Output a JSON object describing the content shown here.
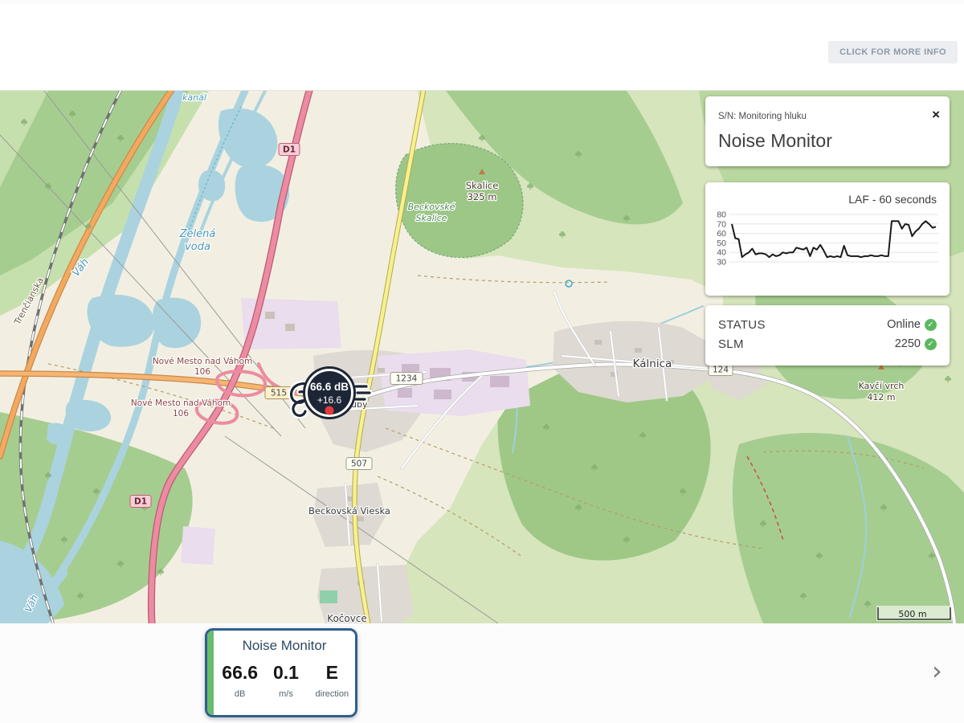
{
  "header": {
    "more_info_button": "CLICK FOR MORE INFO"
  },
  "icons": {
    "close": "×",
    "chevron": "›",
    "check": "✓"
  },
  "panel": {
    "serial": "S/N: Monitoring hluku",
    "title": "Noise Monitor",
    "status": {
      "rows": [
        {
          "label": "STATUS",
          "value": "Online"
        },
        {
          "label": "SLM",
          "value": "2250"
        }
      ]
    }
  },
  "chart_data": {
    "type": "line",
    "title": "LAF - 60 seconds",
    "xlabel": "",
    "ylabel": "",
    "ylim": [
      30,
      80
    ],
    "yticks": [
      80,
      70,
      60,
      50,
      40,
      30
    ],
    "grid": true,
    "legend_position": "none",
    "series": [
      {
        "name": "LAF",
        "color": "#1a1a1a",
        "values": [
          70,
          55,
          54,
          35,
          38,
          40,
          44,
          38,
          39,
          39,
          38,
          35,
          38,
          36,
          37,
          40,
          39,
          40,
          40,
          45,
          44,
          43,
          45,
          36,
          45,
          43,
          48,
          42,
          35,
          36,
          35,
          36,
          35,
          47,
          37,
          36,
          36,
          36,
          35,
          36,
          36,
          37,
          36,
          36,
          37,
          36,
          36,
          73,
          73,
          73,
          65,
          70,
          69,
          57,
          62,
          65,
          70,
          73,
          70,
          66,
          67
        ]
      }
    ]
  },
  "marker": {
    "value": "66.6 dB",
    "delta": "+16.6"
  },
  "bottom_card": {
    "title": "Noise Monitor",
    "metrics": [
      {
        "value": "66.6",
        "unit": "dB"
      },
      {
        "value": "0.1",
        "unit": "m/s"
      },
      {
        "value": "E",
        "unit": "direction"
      }
    ]
  },
  "map": {
    "scale": "500 m",
    "labels": {
      "kanal": "kanál",
      "zelena_l1": "Zelená",
      "zelena_l2": "voda",
      "vah_top": "Váh",
      "vah_bottom": "Váh",
      "trencianska": "Trenčianska",
      "nm1_l1": "Nové Mesto nad Váhom",
      "nm1_l2": "106",
      "nm2_l1": "Nové Mesto nad Váhom",
      "nm2_l2": "106",
      "beckovske_l1": "Beckovské",
      "beckovske_l2": "Skalice",
      "skalice_l1": "Skalice",
      "skalice_l2": "325 m",
      "kalnica": "Kálnica",
      "kavci_l1": "Kavčí vrch",
      "kavci_l2": "412 m",
      "vieska": "Beckovská Vieska",
      "kocovce": "Kočovce",
      "uby": "uby"
    },
    "badges": {
      "d1_north": "D1",
      "d1_south": "D1",
      "r515": "515",
      "r1234": "1234",
      "r507": "507",
      "r124": "124"
    }
  },
  "colors": {
    "accent_green": "#5cb860",
    "card_border_blue": "#2f5f8f",
    "marker_dark": "#1d2636",
    "alert_red": "#e23b3b"
  }
}
